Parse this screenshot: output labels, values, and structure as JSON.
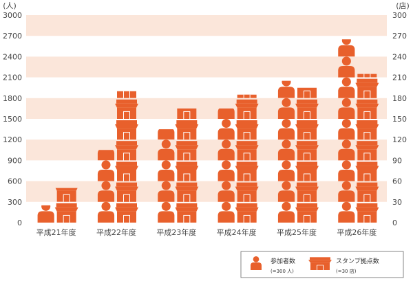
{
  "chart_data": {
    "type": "bar",
    "categories": [
      "平成21年度",
      "平成22年度",
      "平成23年度",
      "平成24年度",
      "平成25年度",
      "平成26年度"
    ],
    "series": [
      {
        "name": "参加者数",
        "values": [
          250,
          1050,
          1350,
          1650,
          2050,
          2650
        ]
      },
      {
        "name": "スタンプ拠点数",
        "values": [
          50,
          190,
          165,
          185,
          195,
          215
        ]
      }
    ],
    "y_left": {
      "unit": "(人)",
      "ylim": [
        0,
        3000
      ],
      "ticks": [
        0,
        300,
        600,
        900,
        1200,
        1500,
        1800,
        2100,
        2400,
        2700,
        3000
      ]
    },
    "y_right": {
      "unit": "(店)",
      "ylim": [
        0,
        300
      ],
      "ticks": [
        0,
        30,
        60,
        90,
        120,
        150,
        180,
        210,
        240,
        270,
        300
      ]
    },
    "grid": "banded",
    "legend_position": "bottom-right",
    "colors": {
      "bar": "#e8602c",
      "band": "#fbe6da"
    }
  },
  "legend": {
    "person": {
      "label": "参加者数",
      "sub": "(=300 人)",
      "icon": "person-icon"
    },
    "shop": {
      "label": "スタンプ拠点数",
      "sub": "(=30 店)",
      "icon": "shop-icon"
    }
  }
}
